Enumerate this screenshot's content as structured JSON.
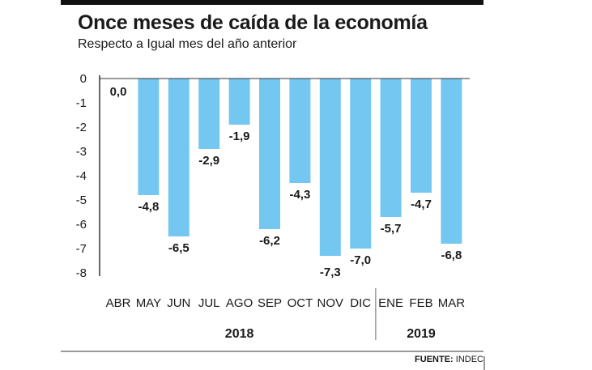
{
  "header": {
    "title": "Once meses de caída de la economía",
    "subtitle": "Respecto a Igual mes del año anterior"
  },
  "footer": {
    "source_label": "FUENTE:",
    "source_value": "INDEC"
  },
  "colors": {
    "bar": "#74c7f0",
    "text": "#1a1a1a",
    "axis": "#333333"
  },
  "chart_data": {
    "type": "bar",
    "title": "Once meses de caída de la economía",
    "subtitle": "Respecto a Igual mes del año anterior",
    "xlabel": "",
    "ylabel": "",
    "ylim": [
      -8,
      0
    ],
    "yticks": [
      "0",
      "-1",
      "-2",
      "-3",
      "-4",
      "-5",
      "-6",
      "-7",
      "-8"
    ],
    "grid": false,
    "categories": [
      "ABR",
      "MAY",
      "JUN",
      "JUL",
      "AGO",
      "SEP",
      "OCT",
      "NOV",
      "DIC",
      "ENE",
      "FEB",
      "MAR"
    ],
    "values": [
      0.0,
      -4.8,
      -6.5,
      -2.9,
      -1.9,
      -6.2,
      -4.3,
      -7.3,
      -7.0,
      -5.7,
      -4.7,
      -6.8
    ],
    "labels": [
      "0,0",
      "-4,8",
      "-6,5",
      "-2,9",
      "-1,9",
      "-6,2",
      "-4,3",
      "-7,3",
      "-7,0",
      "-5,7",
      "-4,7",
      "-6,8"
    ],
    "groups": [
      {
        "label": "2018",
        "count": 9
      },
      {
        "label": "2019",
        "count": 3
      }
    ]
  }
}
